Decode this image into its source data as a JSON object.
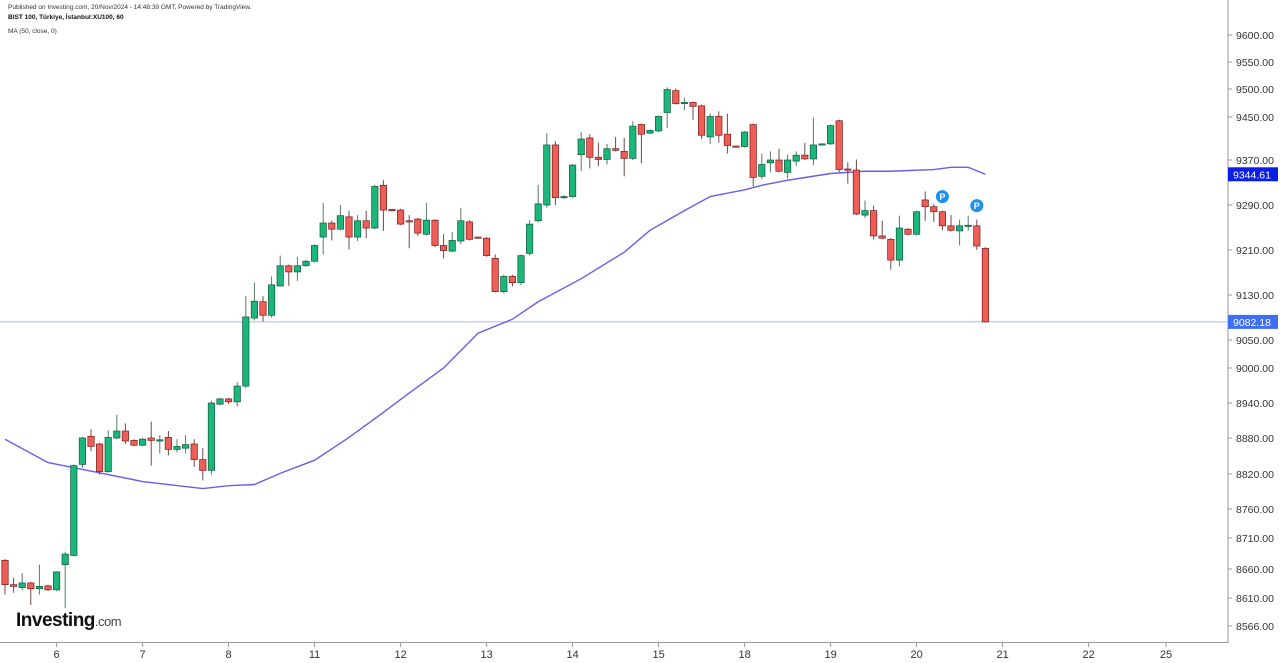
{
  "header": {
    "published": "Published on Investing.com, 20/Nov/2024 - 14:48:39 GMT, Powered by TradingView.",
    "symbol": "BIST 100, Türkiye, İstanbul:XU100, 60",
    "indicator": "MA (50, close, 0)"
  },
  "logo": {
    "name": "Investing",
    ".com": ".com",
    "suffix": ".com"
  },
  "colors": {
    "up": "#1cb57a",
    "down": "#ef5d57",
    "ma": "#6a5cf0",
    "last_price": "#3d6ef5",
    "ma_tag": "#0a1ee6"
  },
  "chart_data": {
    "type": "candlestick",
    "title": "BIST 100, Türkiye, İstanbul:XU100, 60",
    "yticks": [
      9600,
      9550,
      9500,
      9450,
      9370,
      9290,
      9210,
      9130,
      9050,
      9000,
      8940,
      8880,
      8820,
      8760,
      8710,
      8660,
      8610,
      8566
    ],
    "ytick_labels": [
      "9600.00",
      "9550.00",
      "9500.00",
      "9450.00",
      "9370.00",
      "9290.00",
      "9210.00",
      "9130.00",
      "9050.00",
      "9000.00",
      "8940.00",
      "8880.00",
      "8820.00",
      "8760.00",
      "8710.00",
      "8660.00",
      "8610.00",
      "8566.00"
    ],
    "xticks": [
      {
        "label": "6",
        "i": 7
      },
      {
        "label": "7",
        "i": 17
      },
      {
        "label": "8",
        "i": 27
      },
      {
        "label": "11",
        "i": 37
      },
      {
        "label": "12",
        "i": 47
      },
      {
        "label": "13",
        "i": 57
      },
      {
        "label": "14",
        "i": 67
      },
      {
        "label": "15",
        "i": 77
      },
      {
        "label": "18",
        "i": 87
      },
      {
        "label": "19",
        "i": 97
      },
      {
        "label": "20",
        "i": 107
      },
      {
        "label": "21",
        "i": 117
      },
      {
        "label": "22",
        "i": 127
      },
      {
        "label": "25",
        "i": 136
      }
    ],
    "last_price": 9082.18,
    "last_price_label": "9082.18",
    "ma_last": 9344.61,
    "ma_last_label": "9344.61",
    "candles_ohlc": [
      [
        8674,
        8676,
        8616,
        8633
      ],
      [
        8633,
        8645,
        8619,
        8630
      ],
      [
        8628,
        8653,
        8623,
        8636
      ],
      [
        8636,
        8638,
        8599,
        8626
      ],
      [
        8626,
        8667,
        8616,
        8630
      ],
      [
        8631,
        8633,
        8622,
        8624
      ],
      [
        8624,
        8656,
        8622,
        8655
      ],
      [
        8667,
        8688,
        8594,
        8684
      ],
      [
        8682,
        8836,
        8680,
        8834
      ],
      [
        8836,
        8882,
        8830,
        8880
      ],
      [
        8883,
        8895,
        8858,
        8866
      ],
      [
        8870,
        8872,
        8819,
        8824
      ],
      [
        8824,
        8893,
        8822,
        8881
      ],
      [
        8880,
        8920,
        8878,
        8892
      ],
      [
        8892,
        8905,
        8870,
        8875
      ],
      [
        8876,
        8878,
        8866,
        8868
      ],
      [
        8868,
        8880,
        8866,
        8878
      ],
      [
        8880,
        8908,
        8834,
        8876
      ],
      [
        8876,
        8885,
        8854,
        8877
      ],
      [
        8881,
        8892,
        8851,
        8861
      ],
      [
        8861,
        8878,
        8856,
        8866
      ],
      [
        8863,
        8885,
        8854,
        8869
      ],
      [
        8870,
        8878,
        8832,
        8844
      ],
      [
        8844,
        8863,
        8809,
        8826
      ],
      [
        8826,
        8944,
        8819,
        8940
      ],
      [
        8938,
        8949,
        8936,
        8947
      ],
      [
        8947,
        8949,
        8938,
        8942
      ],
      [
        8942,
        8976,
        8934,
        8969
      ],
      [
        8969,
        9128,
        8965,
        9091
      ],
      [
        9089,
        9152,
        9085,
        9119
      ],
      [
        9118,
        9128,
        9083,
        9094
      ],
      [
        9094,
        9163,
        9090,
        9148
      ],
      [
        9146,
        9200,
        9145,
        9182
      ],
      [
        9182,
        9184,
        9146,
        9171
      ],
      [
        9171,
        9198,
        9155,
        9182
      ],
      [
        9182,
        9192,
        9180,
        9190
      ],
      [
        9190,
        9220,
        9188,
        9218
      ],
      [
        9233,
        9294,
        9202,
        9258
      ],
      [
        9258,
        9262,
        9227,
        9247
      ],
      [
        9247,
        9290,
        9245,
        9271
      ],
      [
        9269,
        9280,
        9211,
        9233
      ],
      [
        9233,
        9272,
        9226,
        9262
      ],
      [
        9262,
        9280,
        9231,
        9249
      ],
      [
        9249,
        9326,
        9247,
        9323
      ],
      [
        9325,
        9334,
        9244,
        9281
      ],
      [
        9282,
        9283,
        9279,
        9280
      ],
      [
        9281,
        9283,
        9254,
        9256
      ],
      [
        9262,
        9272,
        9213,
        9260
      ],
      [
        9265,
        9267,
        9235,
        9240
      ],
      [
        9238,
        9294,
        9236,
        9263
      ],
      [
        9263,
        9265,
        9215,
        9218
      ],
      [
        9218,
        9238,
        9195,
        9209
      ],
      [
        9208,
        9242,
        9206,
        9227
      ],
      [
        9226,
        9285,
        9220,
        9262
      ],
      [
        9260,
        9263,
        9227,
        9229
      ],
      [
        9233,
        9234,
        9230,
        9231
      ],
      [
        9231,
        9233,
        9198,
        9200
      ],
      [
        9195,
        9202,
        9135,
        9136
      ],
      [
        9136,
        9166,
        9133,
        9163
      ],
      [
        9163,
        9166,
        9145,
        9152
      ],
      [
        9152,
        9202,
        9148,
        9200
      ],
      [
        9204,
        9263,
        9200,
        9256
      ],
      [
        9262,
        9326,
        9259,
        9292
      ],
      [
        9290,
        9420,
        9285,
        9398
      ],
      [
        9398,
        9405,
        9290,
        9303
      ],
      [
        9303,
        9307,
        9301,
        9305
      ],
      [
        9305,
        9363,
        9303,
        9361
      ],
      [
        9380,
        9422,
        9350,
        9409
      ],
      [
        9411,
        9418,
        9355,
        9375
      ],
      [
        9375,
        9402,
        9359,
        9371
      ],
      [
        9371,
        9400,
        9362,
        9391
      ],
      [
        9391,
        9413,
        9386,
        9388
      ],
      [
        9386,
        9411,
        9341,
        9373
      ],
      [
        9373,
        9442,
        9370,
        9433
      ],
      [
        9436,
        9438,
        9364,
        9418
      ],
      [
        9420,
        9427,
        9418,
        9425
      ],
      [
        9424,
        9453,
        9422,
        9451
      ],
      [
        9458,
        9503,
        9429,
        9499
      ],
      [
        9497,
        9501,
        9472,
        9474
      ],
      [
        9476,
        9485,
        9462,
        9476
      ],
      [
        9476,
        9478,
        9445,
        9469
      ],
      [
        9470,
        9472,
        9409,
        9416
      ],
      [
        9413,
        9456,
        9400,
        9451
      ],
      [
        9451,
        9460,
        9402,
        9416
      ],
      [
        9418,
        9456,
        9382,
        9397
      ],
      [
        9396,
        9397,
        9393,
        9395
      ],
      [
        9395,
        9424,
        9393,
        9422
      ],
      [
        9436,
        9438,
        9323,
        9339
      ],
      [
        9341,
        9382,
        9336,
        9362
      ],
      [
        9365,
        9386,
        9348,
        9370
      ],
      [
        9370,
        9391,
        9348,
        9350
      ],
      [
        9348,
        9380,
        9337,
        9370
      ],
      [
        9368,
        9386,
        9359,
        9379
      ],
      [
        9379,
        9402,
        9370,
        9372
      ],
      [
        9372,
        9449,
        9361,
        9398
      ],
      [
        9400,
        9401,
        9399,
        9400
      ],
      [
        9400,
        9436,
        9398,
        9434
      ],
      [
        9443,
        9445,
        9348,
        9353
      ],
      [
        9354,
        9366,
        9328,
        9352
      ],
      [
        9352,
        9371,
        9272,
        9274
      ],
      [
        9272,
        9298,
        9267,
        9280
      ],
      [
        9280,
        9289,
        9229,
        9235
      ],
      [
        9235,
        9262,
        9229,
        9231
      ],
      [
        9229,
        9231,
        9175,
        9192
      ],
      [
        9192,
        9271,
        9181,
        9249
      ],
      [
        9247,
        9249,
        9236,
        9238
      ],
      [
        9238,
        9280,
        9236,
        9278
      ],
      [
        9299,
        9314,
        9262,
        9287
      ],
      [
        9287,
        9292,
        9260,
        9278
      ],
      [
        9278,
        9280,
        9245,
        9253
      ],
      [
        9253,
        9272,
        9243,
        9245
      ],
      [
        9244,
        9264,
        9218,
        9253
      ],
      [
        9253,
        9271,
        9244,
        9254
      ],
      [
        9253,
        9264,
        9210,
        9217
      ],
      [
        9213,
        9215,
        9081,
        9082.18
      ]
    ],
    "ma_series": [
      [
        1,
        8878
      ],
      [
        6,
        8839
      ],
      [
        12,
        8822
      ],
      [
        17,
        8807
      ],
      [
        24,
        8795
      ],
      [
        27,
        8800
      ],
      [
        30,
        8802
      ],
      [
        33,
        8821
      ],
      [
        37,
        8843
      ],
      [
        41,
        8881
      ],
      [
        45,
        8924
      ],
      [
        48,
        8957
      ],
      [
        52,
        9000
      ],
      [
        56,
        9062
      ],
      [
        60,
        9087
      ],
      [
        63,
        9118
      ],
      [
        68,
        9159
      ],
      [
        73,
        9206
      ],
      [
        76,
        9245
      ],
      [
        80,
        9280
      ],
      [
        83,
        9305
      ],
      [
        87,
        9317
      ],
      [
        89,
        9325
      ],
      [
        92,
        9334
      ],
      [
        97,
        9346
      ],
      [
        101,
        9350
      ],
      [
        104,
        9350
      ],
      [
        109,
        9353
      ],
      [
        111,
        9357
      ],
      [
        113,
        9357
      ],
      [
        115,
        9344.61
      ]
    ],
    "markers": [
      {
        "i": 110,
        "label": "P"
      },
      {
        "i": 114,
        "label": "P"
      }
    ]
  }
}
